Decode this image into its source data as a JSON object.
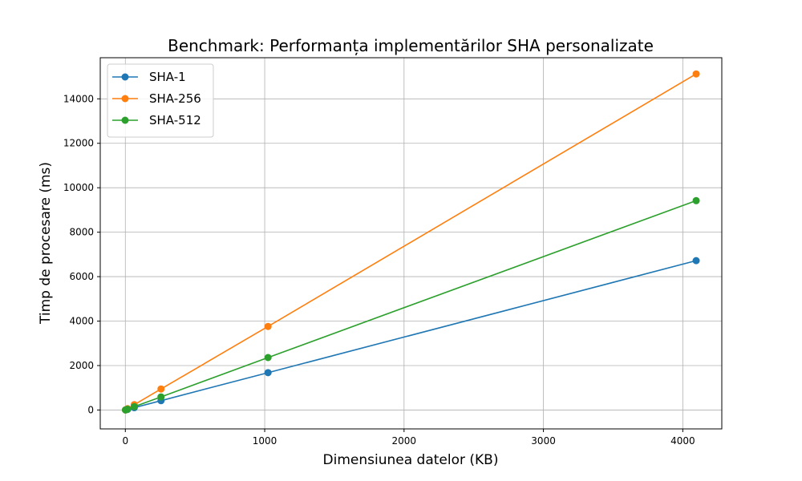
{
  "chart_data": {
    "type": "line",
    "title": "Benchmark: Performanța implementărilor SHA personalizate",
    "xlabel": "Dimensiunea datelor (KB)",
    "ylabel": "Timp de procesare (ms)",
    "xlim": [
      -180,
      4280
    ],
    "ylim": [
      -850,
      15850
    ],
    "xticks": [
      0,
      1000,
      2000,
      3000,
      4000
    ],
    "yticks": [
      0,
      2000,
      4000,
      6000,
      8000,
      10000,
      12000,
      14000
    ],
    "grid": true,
    "legend_position": "top-left",
    "x": [
      1,
      16,
      64,
      256,
      1024,
      4096
    ],
    "series": [
      {
        "name": "SHA-1",
        "color": "#1f77b4",
        "values": [
          2,
          26,
          105,
          420,
          1680,
          6720
        ]
      },
      {
        "name": "SHA-256",
        "color": "#ff7f0e",
        "values": [
          4,
          60,
          240,
          945,
          3760,
          15120
        ]
      },
      {
        "name": "SHA-512",
        "color": "#2ca02c",
        "values": [
          3,
          38,
          150,
          590,
          2360,
          9420
        ]
      }
    ]
  }
}
